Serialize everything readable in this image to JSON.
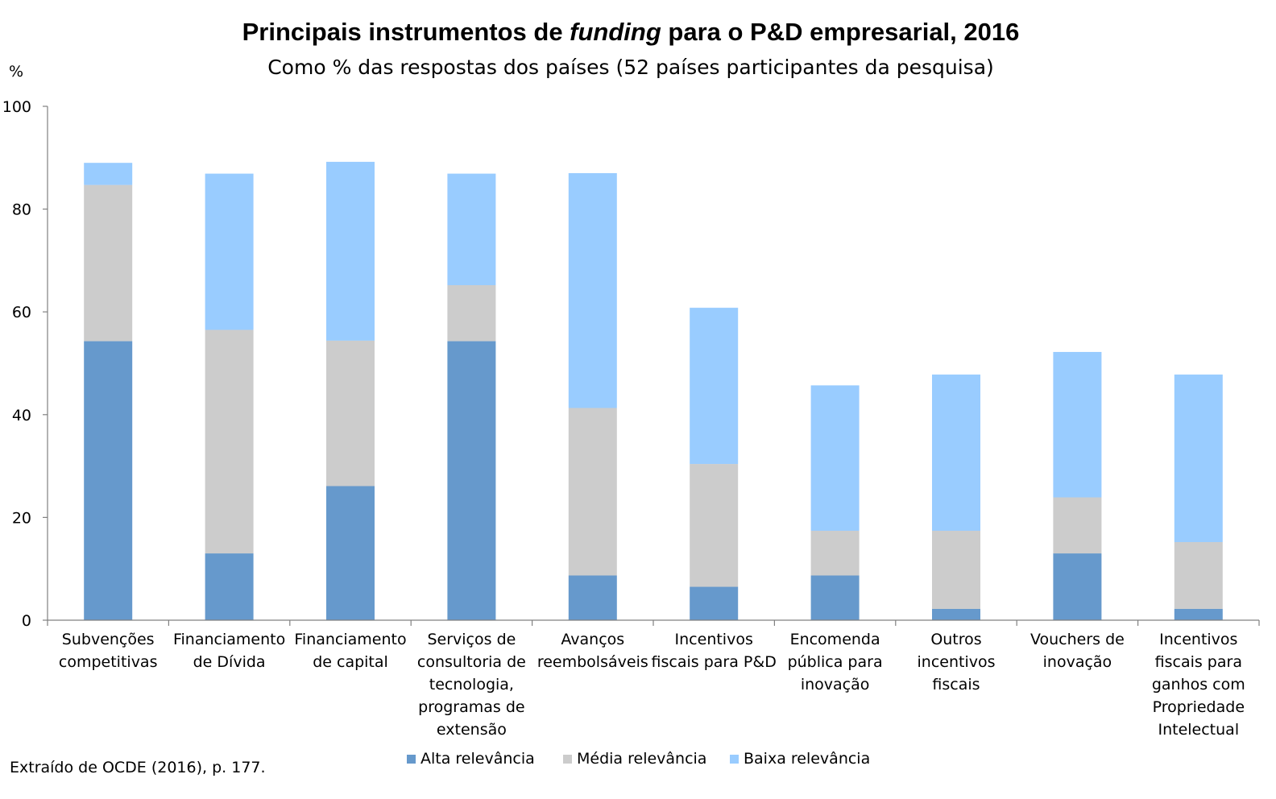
{
  "chart_data": {
    "type": "bar",
    "stacked": true,
    "title": {
      "before": "Principais instrumentos de ",
      "italic": "funding",
      "after": " para o P&D empresarial, 2016"
    },
    "subtitle": "Como % das respostas dos países (52 países participantes da pesquisa)",
    "ylabel": "%",
    "xlabel": "",
    "ylim": [
      0,
      100
    ],
    "yticks": [
      0,
      20,
      40,
      60,
      80,
      100
    ],
    "grid": false,
    "legend_position": "bottom",
    "categories": [
      [
        "Subvenções",
        "competitivas"
      ],
      [
        "Financiamento",
        "de Dívida"
      ],
      [
        "Financiamento",
        "de capital"
      ],
      [
        "Serviços de",
        "consultoria de",
        "tecnologia,",
        "programas de",
        "extensão"
      ],
      [
        "Avanços",
        "reembolsáveis"
      ],
      [
        "Incentivos",
        "fiscais para P&D"
      ],
      [
        "Encomenda",
        "pública para",
        "inovação"
      ],
      [
        "Outros",
        "incentivos",
        "fiscais"
      ],
      [
        "Vouchers de",
        "inovação"
      ],
      [
        "Incentivos",
        "fiscais para",
        "ganhos com",
        "Propriedade",
        "Intelectual"
      ]
    ],
    "series": [
      {
        "name": "Alta relevância",
        "color": "#6699cc",
        "values": [
          54.3,
          13.0,
          26.1,
          54.3,
          8.7,
          6.5,
          8.7,
          2.2,
          13.0,
          2.2
        ]
      },
      {
        "name": "Média relevância",
        "color": "#cccccc",
        "values": [
          30.4,
          43.5,
          28.3,
          10.9,
          32.6,
          23.9,
          8.7,
          15.2,
          10.9,
          13.0
        ]
      },
      {
        "name": "Baixa relevância",
        "color": "#99ccff",
        "values": [
          4.3,
          30.4,
          34.8,
          21.7,
          45.7,
          30.4,
          28.3,
          30.4,
          28.3,
          32.6
        ]
      }
    ]
  },
  "source_note": "Extraído de OCDE (2016), p. 177."
}
